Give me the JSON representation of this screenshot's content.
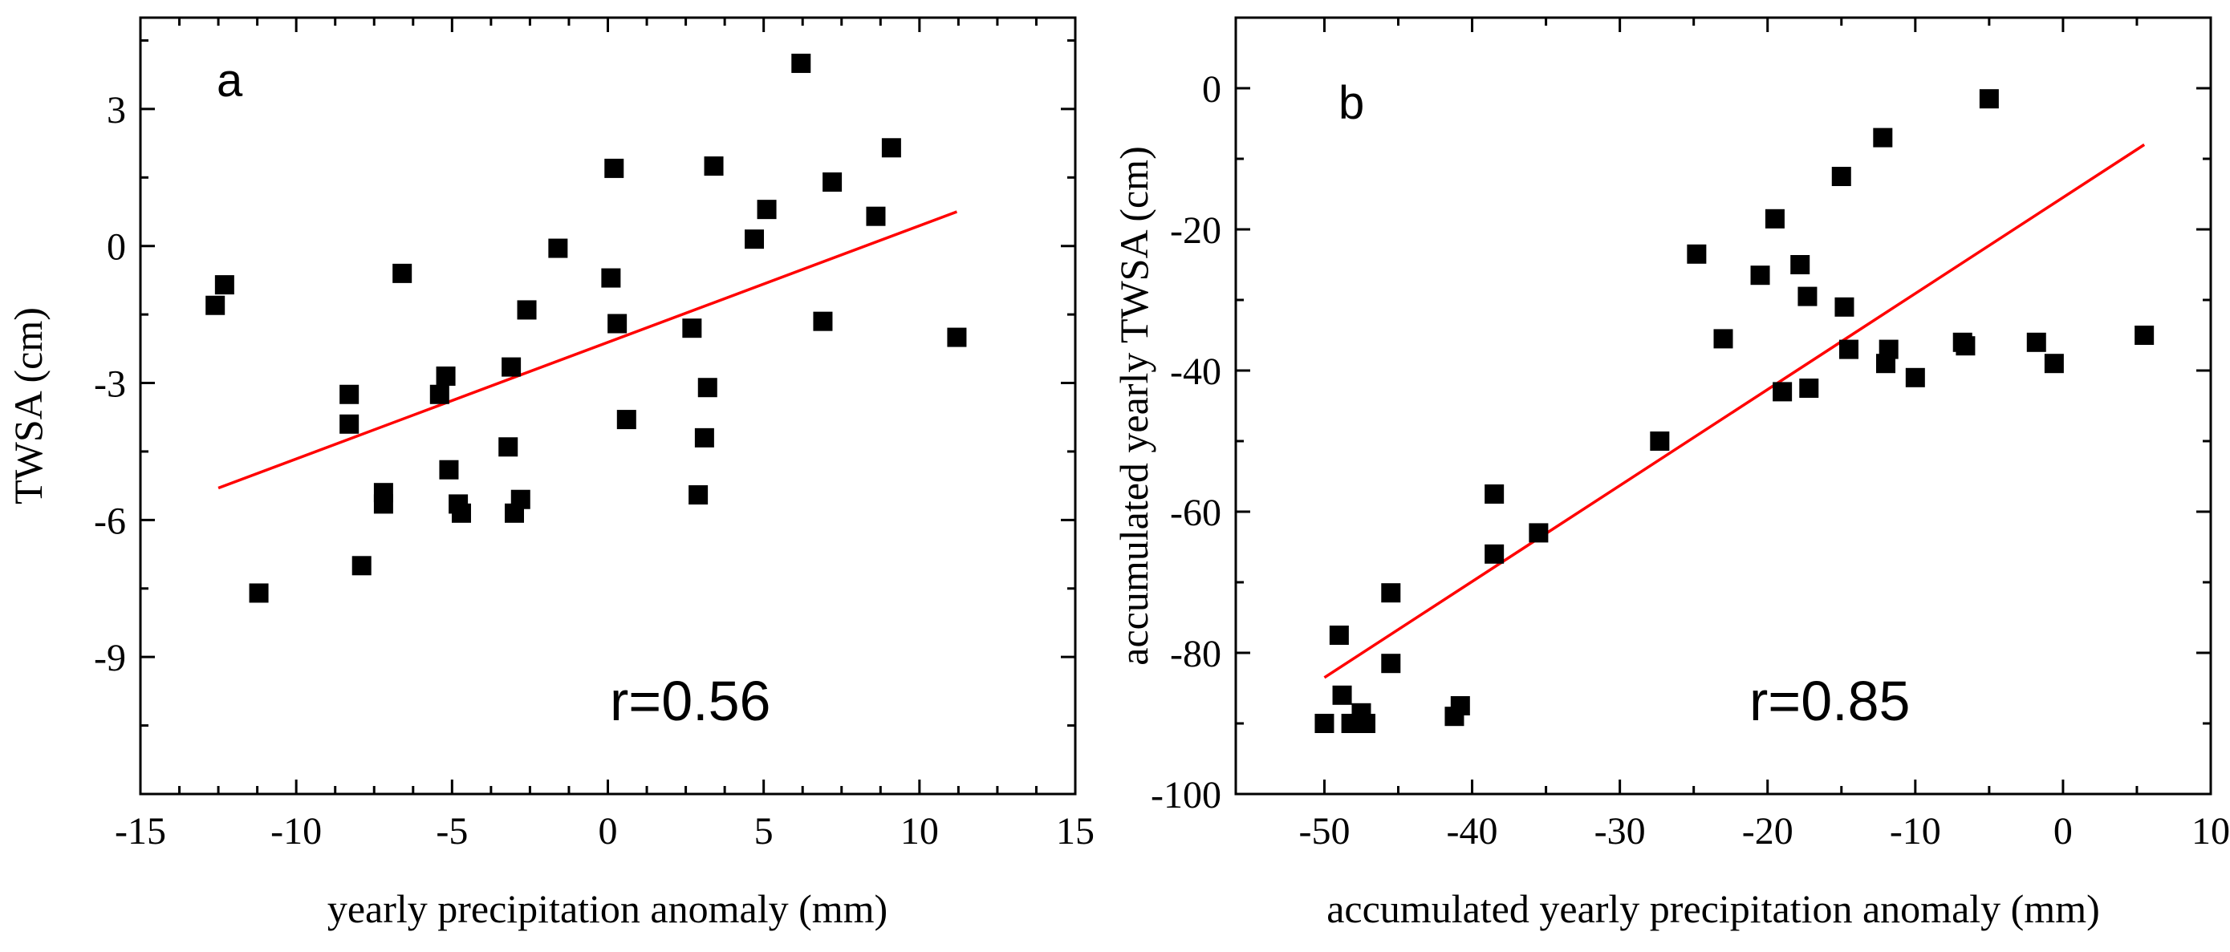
{
  "chart_data": [
    {
      "type": "scatter",
      "panel": "a",
      "annotation": "r=0.56",
      "xlabel": "yearly precipitation anomaly (mm)",
      "ylabel": "TWSA (cm)",
      "xlim": [
        -15,
        15
      ],
      "ylim": [
        -12,
        5
      ],
      "xticks": [
        -15,
        -10,
        -5,
        0,
        5,
        10,
        15
      ],
      "xtick_labels": [
        "-15",
        "-10",
        "-5",
        "0",
        "5",
        "10",
        "15"
      ],
      "yticks": [
        -9,
        -6,
        -3,
        0,
        3
      ],
      "ytick_labels": [
        "-9",
        "-6",
        "-3",
        "0",
        "3"
      ],
      "grid": false,
      "points": [
        [
          -12.6,
          -1.3
        ],
        [
          -12.3,
          -0.85
        ],
        [
          -11.2,
          -7.6
        ],
        [
          -8.3,
          -3.25
        ],
        [
          -8.3,
          -3.9
        ],
        [
          -7.9,
          -7.0
        ],
        [
          -7.2,
          -5.4
        ],
        [
          -7.2,
          -5.65
        ],
        [
          -6.6,
          -0.6
        ],
        [
          -5.4,
          -3.25
        ],
        [
          -5.2,
          -2.85
        ],
        [
          -5.1,
          -4.9
        ],
        [
          -4.8,
          -5.65
        ],
        [
          -4.7,
          -5.85
        ],
        [
          -3.2,
          -4.4
        ],
        [
          -3.1,
          -2.65
        ],
        [
          -3.0,
          -5.85
        ],
        [
          -2.8,
          -5.55
        ],
        [
          -2.6,
          -1.4
        ],
        [
          -1.6,
          -0.05
        ],
        [
          0.1,
          -0.7
        ],
        [
          0.2,
          1.7
        ],
        [
          0.3,
          -1.7
        ],
        [
          0.6,
          -3.8
        ],
        [
          2.7,
          -1.8
        ],
        [
          2.9,
          -5.45
        ],
        [
          3.1,
          -4.2
        ],
        [
          3.2,
          -3.1
        ],
        [
          3.4,
          1.75
        ],
        [
          4.7,
          0.15
        ],
        [
          5.1,
          0.8
        ],
        [
          6.2,
          4.0
        ],
        [
          6.9,
          -1.65
        ],
        [
          7.2,
          1.4
        ],
        [
          8.6,
          0.65
        ],
        [
          9.1,
          2.15
        ],
        [
          11.2,
          -2.0
        ]
      ],
      "fit_line": {
        "x": [
          -12.5,
          11.2
        ],
        "y": [
          -5.3,
          0.75
        ],
        "color": "#ff0000"
      },
      "marker_color": "#000000"
    },
    {
      "type": "scatter",
      "panel": "b",
      "annotation": "r=0.85",
      "xlabel": "accumulated yearly precipitation anomaly (mm)",
      "ylabel": "accumulated yearly TWSA (cm)",
      "xlim": [
        -56,
        10
      ],
      "ylim": [
        -100,
        10
      ],
      "xticks": [
        -50,
        -40,
        -30,
        -20,
        -10,
        0,
        10
      ],
      "xtick_labels": [
        "-50",
        "-40",
        "-30",
        "-20",
        "-10",
        "0",
        "10"
      ],
      "yticks": [
        -100,
        -80,
        -60,
        -40,
        -20,
        0
      ],
      "ytick_labels": [
        "-100",
        "-80",
        "-60",
        "-40",
        "-20",
        "0"
      ],
      "grid": false,
      "points": [
        [
          -50.0,
          -90.0
        ],
        [
          -49.0,
          -77.5
        ],
        [
          -48.8,
          -86.0
        ],
        [
          -48.2,
          -90.0
        ],
        [
          -47.5,
          -88.5
        ],
        [
          -47.2,
          -90.0
        ],
        [
          -45.5,
          -71.5
        ],
        [
          -45.5,
          -81.5
        ],
        [
          -41.2,
          -89.0
        ],
        [
          -40.8,
          -87.5
        ],
        [
          -38.5,
          -57.5
        ],
        [
          -38.5,
          -66.0
        ],
        [
          -35.5,
          -63.0
        ],
        [
          -27.3,
          -50.0
        ],
        [
          -24.8,
          -23.5
        ],
        [
          -23.0,
          -35.5
        ],
        [
          -20.5,
          -26.5
        ],
        [
          -19.5,
          -18.5
        ],
        [
          -19.0,
          -43.0
        ],
        [
          -17.8,
          -25.0
        ],
        [
          -17.3,
          -29.5
        ],
        [
          -17.2,
          -42.5
        ],
        [
          -15.0,
          -12.5
        ],
        [
          -14.8,
          -31.0
        ],
        [
          -14.5,
          -37.0
        ],
        [
          -12.2,
          -7.0
        ],
        [
          -12.0,
          -39.0
        ],
        [
          -11.8,
          -37.0
        ],
        [
          -10.0,
          -41.0
        ],
        [
          -5.0,
          -1.5
        ],
        [
          -6.8,
          -36.0
        ],
        [
          -6.6,
          -36.5
        ],
        [
          -1.8,
          -36.0
        ],
        [
          -0.6,
          -39.0
        ],
        [
          5.5,
          -35.0
        ]
      ],
      "fit_line": {
        "x": [
          -50,
          5.5
        ],
        "y": [
          -83.5,
          -8.0
        ],
        "color": "#ff0000"
      },
      "marker_color": "#000000"
    }
  ]
}
